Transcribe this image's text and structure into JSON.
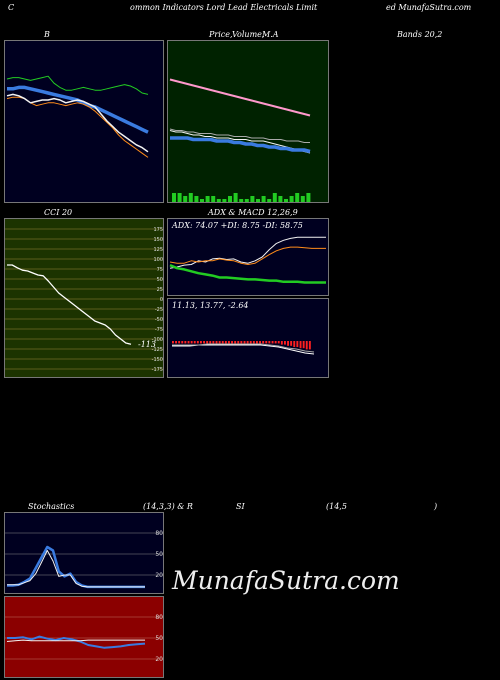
{
  "header": {
    "part1": "C",
    "part2": "ommon  Indicators Lord Lead Electricals Limit",
    "part3": "ed MunafaSutra.com"
  },
  "labels": {
    "b": "B",
    "price": "Price,",
    "volume": "Volume,",
    "ma": "M.A",
    "bands": "Bands 20,2",
    "cci": "CCI 20",
    "adx": "ADX  & MACD 12,26,9",
    "stoch": "Stochastics",
    "stoch_params": "(14,3,3) & R",
    "si": "SI",
    "rsi_params": "(14,5",
    "close_paren": ")"
  },
  "adx_text": "ADX: 74.07  +DI: 8.75  -DI: 58.75",
  "macd_text": "11.13,  13.77,  -2.64",
  "cci_value": "-113",
  "watermark": "MunafaSutra.com",
  "colors": {
    "panel_bg_dark": "#000020",
    "panel_bg_green": "#002200",
    "cci_bg": "#1c3300",
    "rsi_bg": "#8b0000",
    "blue": "#3a7be0",
    "green": "#22cc22",
    "orange": "#ff8c1a",
    "pink": "#ff99cc",
    "red": "#ff2020"
  },
  "chart_data": [
    {
      "type": "line",
      "panel": "bands",
      "y_min": 0,
      "y_max": 100,
      "series": [
        {
          "color": "green",
          "values": [
            80,
            81,
            81,
            80,
            79,
            80,
            81,
            82,
            77,
            74,
            72,
            72,
            73,
            74,
            73,
            72,
            72,
            73,
            74,
            75,
            76,
            75,
            73,
            70,
            69
          ]
        },
        {
          "color": "blue",
          "values": [
            73,
            73,
            74,
            74,
            73,
            72,
            71,
            70,
            69,
            68,
            67,
            66,
            65,
            63,
            61,
            60,
            58,
            56,
            54,
            52,
            50,
            48,
            46,
            44,
            42
          ]
        },
        {
          "color": "orange",
          "values": [
            66,
            67,
            67,
            66,
            63,
            61,
            62,
            63,
            63,
            62,
            61,
            62,
            63,
            62,
            60,
            57,
            53,
            49,
            45,
            40,
            36,
            33,
            30,
            27,
            24
          ]
        },
        {
          "color": "white",
          "values": [
            68,
            69,
            68,
            66,
            63,
            64,
            65,
            65,
            66,
            65,
            63,
            64,
            65,
            64,
            62,
            60,
            55,
            50,
            46,
            42,
            39,
            36,
            33,
            31,
            28
          ]
        }
      ]
    },
    {
      "type": "line",
      "panel": "price_ma",
      "y_min": 0,
      "y_max": 100,
      "series": [
        {
          "color": "pink",
          "values": [
            81,
            80,
            79,
            78,
            77,
            76,
            75,
            74,
            73,
            72,
            71,
            70,
            69,
            68,
            67,
            66,
            65,
            64,
            63,
            62,
            61,
            60,
            59,
            58,
            57
          ]
        },
        {
          "color": "white",
          "values": [
            47,
            46,
            46,
            45,
            44,
            44,
            43,
            43,
            42,
            42,
            42,
            41,
            41,
            41,
            40,
            40,
            40,
            39,
            38,
            37,
            36,
            35,
            34,
            33,
            32
          ]
        },
        {
          "color": "blue",
          "values": [
            42,
            42,
            42,
            42,
            41,
            41,
            41,
            41,
            40,
            40,
            40,
            39,
            39,
            38,
            38,
            37,
            37,
            36,
            36,
            35,
            35,
            34,
            34,
            34,
            33
          ]
        },
        {
          "color": "gray",
          "values": [
            48,
            47,
            47,
            46,
            46,
            45,
            45,
            45,
            44,
            44,
            44,
            43,
            43,
            43,
            42,
            42,
            42,
            41,
            41,
            41,
            40,
            40,
            40,
            39,
            39
          ]
        }
      ],
      "volume": [
        3,
        3,
        2,
        3,
        2,
        1,
        2,
        2,
        1,
        1,
        2,
        3,
        1,
        1,
        2,
        1,
        2,
        1,
        3,
        2,
        1,
        2,
        3,
        2,
        3
      ]
    },
    {
      "type": "line",
      "panel": "cci",
      "title": "CCI 20",
      "y_ticks": [
        175,
        150,
        125,
        100,
        75,
        50,
        25,
        0,
        -25,
        -50,
        -75,
        -100,
        -125,
        -150,
        -175
      ],
      "values": [
        85,
        85,
        78,
        72,
        70,
        65,
        60,
        58,
        45,
        30,
        15,
        5,
        -5,
        -15,
        -25,
        -35,
        -45,
        -55,
        -60,
        -65,
        -75,
        -90,
        -100,
        -110,
        -113
      ],
      "last_label": "-113"
    },
    {
      "type": "line",
      "panel": "adx",
      "adx": 74.07,
      "plus_di": 8.75,
      "minus_di": 58.75,
      "series": [
        {
          "color": "white",
          "values": [
            40,
            42,
            45,
            46,
            52,
            50,
            55,
            56,
            54,
            55,
            50,
            48,
            52,
            58,
            70,
            80,
            85,
            88,
            90,
            90,
            90,
            90,
            90
          ]
        },
        {
          "color": "orange",
          "values": [
            50,
            48,
            48,
            52,
            50,
            52,
            52,
            55,
            53,
            52,
            48,
            46,
            48,
            55,
            62,
            68,
            72,
            74,
            74,
            73,
            72,
            72,
            72
          ]
        },
        {
          "color": "green",
          "values": [
            45,
            40,
            38,
            35,
            32,
            30,
            28,
            25,
            25,
            24,
            23,
            22,
            22,
            21,
            20,
            20,
            18,
            18,
            18,
            17,
            17,
            17,
            17
          ]
        }
      ]
    },
    {
      "type": "bar",
      "panel": "macd",
      "macd": 11.13,
      "signal": 13.77,
      "histogram": -2.64,
      "histogram_values": [
        -2,
        -2,
        -2,
        -2,
        -2,
        -2,
        -2,
        -2,
        -2,
        -2,
        -2,
        -2,
        -2,
        -2,
        -2,
        -2,
        -2,
        -2,
        -2,
        -2,
        -2,
        -2,
        -2,
        -2,
        -2,
        -2,
        -2,
        -2,
        -2,
        -2,
        -2,
        -2,
        -2,
        -2,
        -2,
        -3,
        -3,
        -4,
        -4,
        -5,
        -5,
        -6,
        -6,
        -7,
        -7
      ]
    },
    {
      "type": "line",
      "panel": "stochastics",
      "params": "(14,3,3)",
      "y_ticks": [
        80,
        50,
        20
      ],
      "series": [
        {
          "color": "blue",
          "values": [
            5,
            5,
            6,
            10,
            15,
            30,
            45,
            60,
            55,
            25,
            18,
            22,
            10,
            5,
            3,
            3,
            3,
            3,
            3,
            3,
            3,
            3,
            3,
            3,
            3
          ]
        },
        {
          "color": "white",
          "values": [
            6,
            6,
            6,
            9,
            12,
            22,
            38,
            55,
            40,
            18,
            20,
            20,
            8,
            4,
            3,
            3,
            3,
            3,
            3,
            3,
            3,
            3,
            3,
            3,
            3
          ]
        }
      ]
    },
    {
      "type": "line",
      "panel": "rsi",
      "params": "(14,5",
      "y_ticks": [
        80,
        50,
        20
      ],
      "series": [
        {
          "color": "blue",
          "values": [
            50,
            50,
            51,
            48,
            52,
            49,
            47,
            50,
            48,
            45,
            40,
            38,
            36,
            37,
            38,
            40,
            41,
            42
          ]
        },
        {
          "color": "white",
          "values": [
            45,
            46,
            47,
            46,
            46,
            46,
            46,
            46,
            46,
            46,
            47,
            47,
            47,
            47,
            47,
            47,
            47,
            47
          ]
        }
      ]
    }
  ]
}
